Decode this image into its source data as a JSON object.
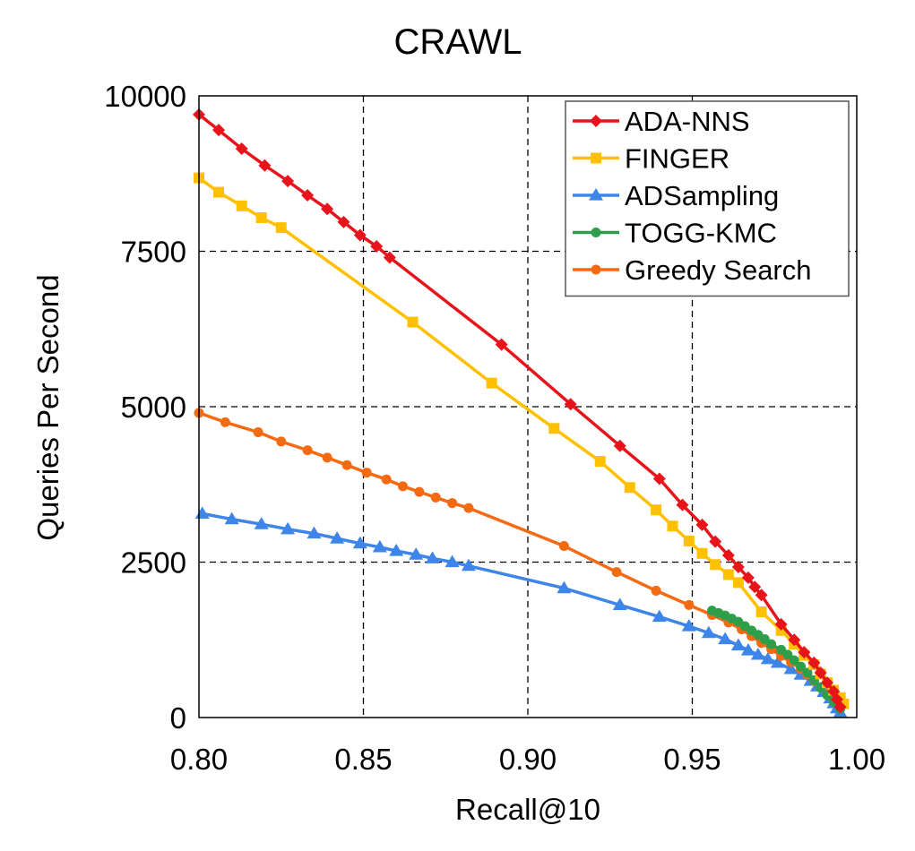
{
  "chart_data": {
    "type": "line",
    "title": "CRAWL",
    "xlabel": "Recall@10",
    "ylabel": "Queries Per Second",
    "xlim": [
      0.8,
      1.0
    ],
    "ylim": [
      0,
      10000
    ],
    "xticks": [
      "0.80",
      "0.85",
      "0.90",
      "0.95",
      "1.00"
    ],
    "yticks": [
      "0",
      "2500",
      "5000",
      "7500",
      "10000"
    ],
    "xtick_values": [
      0.8,
      0.85,
      0.9,
      0.95,
      1.0
    ],
    "ytick_values": [
      0,
      2500,
      5000,
      7500,
      10000
    ],
    "grid": true,
    "legend_position": "top-right",
    "series": [
      {
        "name": "ADA-NNS",
        "color": "#e8141c",
        "marker": "diamond",
        "x": [
          0.8,
          0.806,
          0.813,
          0.82,
          0.827,
          0.833,
          0.839,
          0.844,
          0.849,
          0.854,
          0.858,
          0.892,
          0.913,
          0.928,
          0.94,
          0.947,
          0.953,
          0.957,
          0.961,
          0.964,
          0.967,
          0.969,
          0.971,
          0.977,
          0.981,
          0.984,
          0.987,
          0.989,
          0.991,
          0.993,
          0.994,
          0.995
        ],
        "y": [
          9700,
          9450,
          9150,
          8880,
          8630,
          8400,
          8180,
          7970,
          7760,
          7580,
          7400,
          6000,
          5040,
          4370,
          3840,
          3420,
          3100,
          2830,
          2610,
          2420,
          2250,
          2100,
          1970,
          1500,
          1250,
          1050,
          880,
          720,
          560,
          420,
          290,
          170
        ]
      },
      {
        "name": "FINGER",
        "color": "#ffc000",
        "marker": "square",
        "x": [
          0.8,
          0.806,
          0.813,
          0.819,
          0.825,
          0.865,
          0.889,
          0.908,
          0.922,
          0.931,
          0.939,
          0.944,
          0.949,
          0.953,
          0.957,
          0.961,
          0.964,
          0.971,
          0.977,
          0.981,
          0.984,
          0.987,
          0.989,
          0.991,
          0.993,
          0.995,
          0.996
        ],
        "y": [
          8680,
          8450,
          8230,
          8040,
          7880,
          6360,
          5380,
          4650,
          4120,
          3700,
          3340,
          3080,
          2840,
          2640,
          2460,
          2300,
          2170,
          1700,
          1400,
          1180,
          1000,
          850,
          700,
          560,
          440,
          320,
          220
        ]
      },
      {
        "name": "ADSampling",
        "color": "#3d85e8",
        "marker": "triangle",
        "x": [
          0.801,
          0.81,
          0.819,
          0.827,
          0.835,
          0.842,
          0.849,
          0.855,
          0.86,
          0.866,
          0.871,
          0.877,
          0.882,
          0.911,
          0.928,
          0.94,
          0.949,
          0.955,
          0.96,
          0.964,
          0.967,
          0.97,
          0.973,
          0.976,
          0.98,
          0.983,
          0.986,
          0.988,
          0.99,
          0.992,
          0.993,
          0.994,
          0.995
        ],
        "y": [
          3280,
          3190,
          3110,
          3030,
          2960,
          2880,
          2800,
          2740,
          2680,
          2620,
          2560,
          2500,
          2440,
          2080,
          1810,
          1620,
          1470,
          1360,
          1260,
          1160,
          1080,
          1010,
          940,
          880,
          780,
          690,
          590,
          500,
          410,
          310,
          230,
          150,
          80
        ]
      },
      {
        "name": "TOGG-KMC",
        "color": "#2e9e4a",
        "marker": "circle",
        "x": [
          0.956,
          0.958,
          0.96,
          0.962,
          0.964,
          0.966,
          0.968,
          0.97,
          0.972,
          0.974,
          0.977,
          0.979,
          0.981,
          0.983,
          0.985,
          0.987,
          0.989,
          0.991,
          0.993,
          0.995
        ],
        "y": [
          1720,
          1680,
          1640,
          1590,
          1540,
          1470,
          1400,
          1330,
          1260,
          1180,
          1090,
          1010,
          920,
          820,
          720,
          600,
          480,
          360,
          250,
          140
        ]
      },
      {
        "name": "Greedy Search",
        "color": "#f36a12",
        "marker": "circle",
        "x": [
          0.8,
          0.808,
          0.818,
          0.825,
          0.833,
          0.839,
          0.845,
          0.851,
          0.857,
          0.862,
          0.867,
          0.872,
          0.877,
          0.882,
          0.911,
          0.927,
          0.939,
          0.949,
          0.956,
          0.961,
          0.965,
          0.968,
          0.971,
          0.974,
          0.977,
          0.98,
          0.983,
          0.985,
          0.987,
          0.989,
          0.991,
          0.993,
          0.995
        ],
        "y": [
          4900,
          4750,
          4590,
          4440,
          4300,
          4180,
          4060,
          3940,
          3830,
          3720,
          3630,
          3540,
          3450,
          3370,
          2760,
          2340,
          2040,
          1810,
          1650,
          1530,
          1420,
          1310,
          1200,
          1100,
          990,
          890,
          780,
          690,
          590,
          490,
          380,
          260,
          150
        ]
      }
    ]
  }
}
